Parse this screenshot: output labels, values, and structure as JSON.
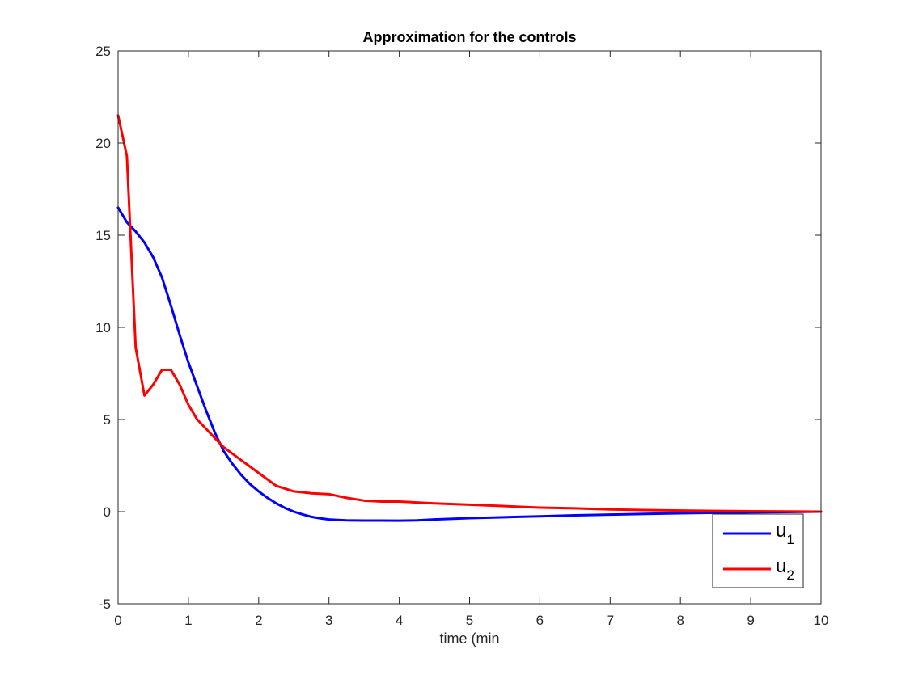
{
  "chart_data": {
    "type": "line",
    "title": "Approximation for the controls",
    "xlabel": "time (min",
    "ylabel": "",
    "xlim": [
      0,
      10
    ],
    "ylim": [
      -5,
      25
    ],
    "xticks": [
      0,
      1,
      2,
      3,
      4,
      5,
      6,
      7,
      8,
      9,
      10
    ],
    "yticks": [
      -5,
      0,
      5,
      10,
      15,
      20,
      25
    ],
    "grid": false,
    "legend_position": "bottom-right",
    "series": [
      {
        "name": "u",
        "name_subscript": "1",
        "color": "#0000ff",
        "x": [
          0,
          0.125,
          0.25,
          0.375,
          0.5,
          0.625,
          0.75,
          0.875,
          1.0,
          1.125,
          1.25,
          1.375,
          1.5,
          1.625,
          1.75,
          1.875,
          2.0,
          2.125,
          2.25,
          2.375,
          2.5,
          2.625,
          2.75,
          2.875,
          3.0,
          3.125,
          3.25,
          3.5,
          3.75,
          4.0,
          4.25,
          4.5,
          5.0,
          5.5,
          6.0,
          6.5,
          7.0,
          7.5,
          8.0,
          8.5,
          9.0,
          9.5,
          10.0
        ],
        "y": [
          16.5,
          15.7,
          15.2,
          14.6,
          13.8,
          12.7,
          11.2,
          9.6,
          8.1,
          6.8,
          5.5,
          4.3,
          3.3,
          2.6,
          2.0,
          1.5,
          1.1,
          0.75,
          0.45,
          0.2,
          0.0,
          -0.15,
          -0.28,
          -0.36,
          -0.42,
          -0.45,
          -0.47,
          -0.48,
          -0.48,
          -0.49,
          -0.47,
          -0.42,
          -0.35,
          -0.3,
          -0.25,
          -0.2,
          -0.16,
          -0.12,
          -0.09,
          -0.06,
          -0.04,
          -0.02,
          0.0
        ]
      },
      {
        "name": "u",
        "name_subscript": "2",
        "color": "#ff0000",
        "x": [
          0,
          0.125,
          0.25,
          0.375,
          0.5,
          0.625,
          0.75,
          0.875,
          1.0,
          1.125,
          1.25,
          1.375,
          1.5,
          1.75,
          2.0,
          2.25,
          2.5,
          2.75,
          3.0,
          3.25,
          3.5,
          3.75,
          4.0,
          4.25,
          4.5,
          5.0,
          5.5,
          6.0,
          6.5,
          7.0,
          7.5,
          8.0,
          8.5,
          9.0,
          9.5,
          10.0
        ],
        "y": [
          21.5,
          19.3,
          8.9,
          6.3,
          6.9,
          7.7,
          7.7,
          6.9,
          5.8,
          5.0,
          4.5,
          4.0,
          3.5,
          2.8,
          2.1,
          1.4,
          1.1,
          1.0,
          0.95,
          0.75,
          0.6,
          0.55,
          0.55,
          0.5,
          0.45,
          0.38,
          0.3,
          0.22,
          0.18,
          0.12,
          0.09,
          0.06,
          0.04,
          0.02,
          0.01,
          0.0
        ]
      }
    ]
  }
}
